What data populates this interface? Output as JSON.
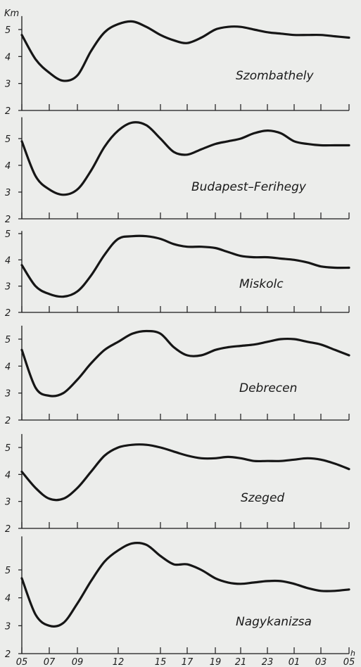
{
  "chart_data": {
    "type": "line",
    "y_unit": "Km",
    "x_unit": "h",
    "x_tick_labels": [
      "05",
      "07",
      "09",
      "12",
      "15",
      "17",
      "19",
      "21",
      "23",
      "01",
      "03",
      "05"
    ],
    "grid": false,
    "panels": [
      {
        "station": "Szombathely",
        "ylim": [
          2,
          5.5
        ],
        "y_ticks": [
          "2",
          "3",
          "4",
          "5"
        ],
        "x": [
          0,
          1,
          2,
          3,
          4,
          5,
          6,
          7,
          8,
          9,
          10,
          11,
          12,
          13,
          14,
          15,
          16,
          17,
          18,
          19,
          20,
          21,
          22,
          23,
          24
        ],
        "values": [
          4.8,
          3.9,
          3.4,
          3.1,
          3.3,
          4.2,
          4.9,
          5.2,
          5.3,
          5.1,
          4.8,
          4.6,
          4.5,
          4.7,
          5.0,
          5.1,
          5.1,
          5.0,
          4.9,
          4.85,
          4.8,
          4.8,
          4.8,
          4.75,
          4.7
        ]
      },
      {
        "station": "Budapest–Ferihegy",
        "ylim": [
          2,
          5.8
        ],
        "y_ticks": [
          "2",
          "3",
          "4",
          "5"
        ],
        "x": [
          0,
          1,
          2,
          3,
          4,
          5,
          6,
          7,
          8,
          9,
          10,
          11,
          12,
          13,
          14,
          15,
          16,
          17,
          18,
          19,
          20,
          21,
          22,
          23,
          24
        ],
        "values": [
          4.9,
          3.6,
          3.1,
          2.9,
          3.1,
          3.8,
          4.7,
          5.3,
          5.6,
          5.5,
          5.0,
          4.5,
          4.4,
          4.6,
          4.8,
          4.9,
          5.0,
          5.2,
          5.3,
          5.2,
          4.9,
          4.8,
          4.75,
          4.75,
          4.75
        ]
      },
      {
        "station": "Miskolc",
        "ylim": [
          2,
          5.1
        ],
        "y_ticks": [
          "2",
          "3",
          "4",
          "5"
        ],
        "x": [
          0,
          1,
          2,
          3,
          4,
          5,
          6,
          7,
          8,
          9,
          10,
          11,
          12,
          13,
          14,
          15,
          16,
          17,
          18,
          19,
          20,
          21,
          22,
          23,
          24
        ],
        "values": [
          3.8,
          3.0,
          2.7,
          2.6,
          2.8,
          3.4,
          4.2,
          4.8,
          4.9,
          4.9,
          4.8,
          4.6,
          4.5,
          4.5,
          4.45,
          4.3,
          4.15,
          4.1,
          4.1,
          4.05,
          4.0,
          3.9,
          3.75,
          3.7,
          3.7
        ]
      },
      {
        "station": "Debrecen",
        "ylim": [
          2,
          5.5
        ],
        "y_ticks": [
          "2",
          "3",
          "4",
          "5"
        ],
        "x": [
          0,
          1,
          2,
          3,
          4,
          5,
          6,
          7,
          8,
          9,
          10,
          11,
          12,
          13,
          14,
          15,
          16,
          17,
          18,
          19,
          20,
          21,
          22,
          23,
          24
        ],
        "values": [
          4.6,
          3.2,
          2.9,
          3.0,
          3.5,
          4.1,
          4.6,
          4.9,
          5.2,
          5.3,
          5.2,
          4.7,
          4.4,
          4.4,
          4.6,
          4.7,
          4.75,
          4.8,
          4.9,
          5.0,
          5.0,
          4.9,
          4.8,
          4.6,
          4.4
        ]
      },
      {
        "station": "Szeged",
        "ylim": [
          2,
          5.5
        ],
        "y_ticks": [
          "2",
          "3",
          "4",
          "5"
        ],
        "x": [
          0,
          1,
          2,
          3,
          4,
          5,
          6,
          7,
          8,
          9,
          10,
          11,
          12,
          13,
          14,
          15,
          16,
          17,
          18,
          19,
          20,
          21,
          22,
          23,
          24
        ],
        "values": [
          4.1,
          3.5,
          3.1,
          3.1,
          3.5,
          4.1,
          4.7,
          5.0,
          5.1,
          5.1,
          5.0,
          4.85,
          4.7,
          4.6,
          4.6,
          4.65,
          4.6,
          4.5,
          4.5,
          4.5,
          4.55,
          4.6,
          4.55,
          4.4,
          4.2
        ]
      },
      {
        "station": "Nagykanizsa",
        "ylim": [
          2,
          6.2
        ],
        "y_ticks": [
          "2",
          "3",
          "4",
          "5"
        ],
        "x": [
          0,
          1,
          2,
          3,
          4,
          5,
          6,
          7,
          8,
          9,
          10,
          11,
          12,
          13,
          14,
          15,
          16,
          17,
          18,
          19,
          20,
          21,
          22,
          23,
          24
        ],
        "values": [
          4.7,
          3.4,
          3.0,
          3.1,
          3.8,
          4.6,
          5.3,
          5.7,
          5.95,
          5.9,
          5.5,
          5.2,
          5.2,
          5.0,
          4.7,
          4.55,
          4.5,
          4.55,
          4.6,
          4.6,
          4.5,
          4.35,
          4.25,
          4.25,
          4.3
        ]
      }
    ]
  }
}
